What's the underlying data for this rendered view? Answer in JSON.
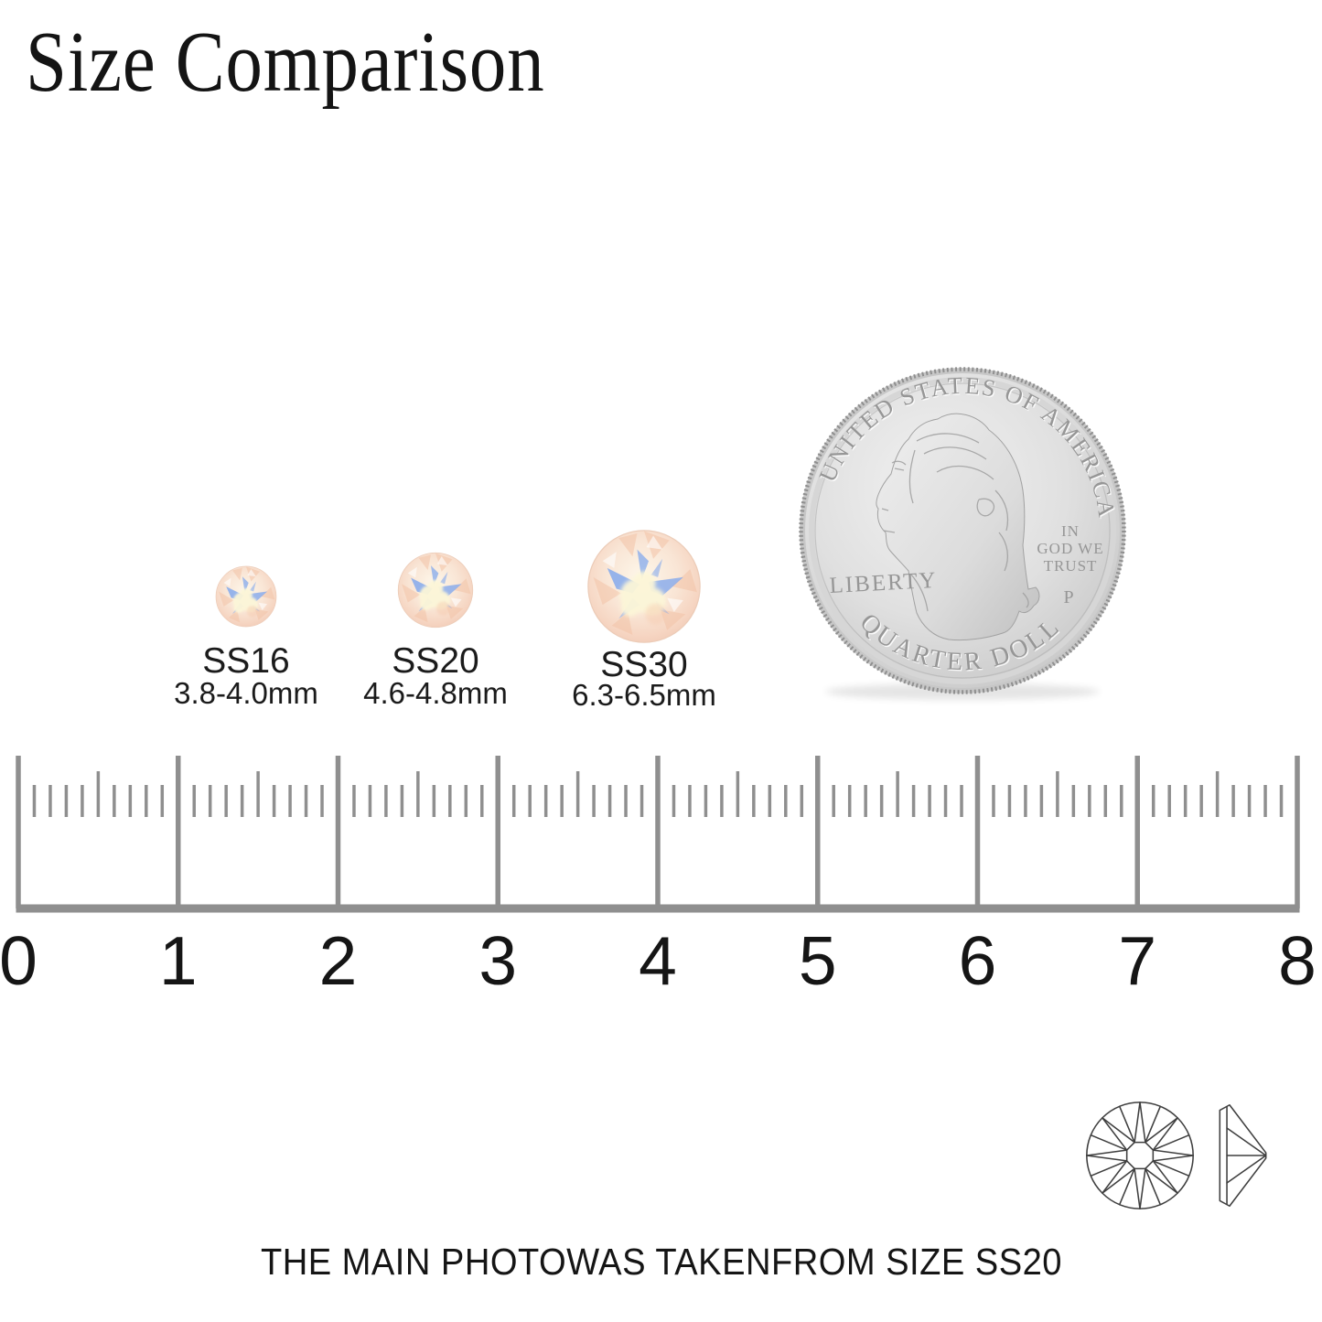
{
  "title": "Size Comparison",
  "stones": [
    {
      "name": "SS16",
      "size": "3.8-4.0mm"
    },
    {
      "name": "SS20",
      "size": "4.6-4.8mm"
    },
    {
      "name": "SS30",
      "size": "6.3-6.5mm"
    }
  ],
  "coin": {
    "top_text": "UNITED STATES OF AMERICA",
    "bottom_text": "QUARTER DOLLAR",
    "left_text": "LIBERTY",
    "motto_line1": "IN",
    "motto_line2": "GOD WE",
    "motto_line3": "TRUST",
    "mint_mark": "P"
  },
  "ruler": {
    "unit_min": 0,
    "unit_max": 8,
    "labels": [
      "0",
      "1",
      "2",
      "3",
      "4",
      "5",
      "6",
      "7",
      "8"
    ],
    "minor_per_unit": 10
  },
  "caption": "THE MAIN PHOTOWAS TAKENFROM SIZE SS20",
  "icons": {
    "top_view": "stone-top-view-icon",
    "side_view": "stone-side-view-icon"
  },
  "colors": {
    "background": "#ffffff",
    "text": "#151515",
    "ruler_gray": "#8f8f8f",
    "coin_silver": "#d2d2d2",
    "stone_base": "#f7dcc9",
    "stone_blue": "#84a9ec",
    "stone_cream": "#fcf6d8",
    "line_art": "#3f3f3f"
  }
}
